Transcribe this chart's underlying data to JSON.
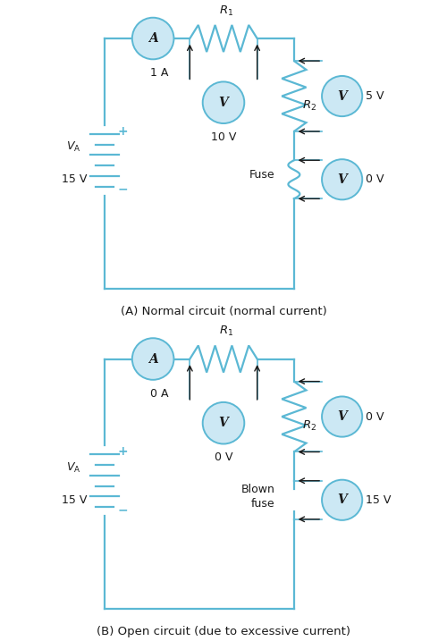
{
  "fig_width": 5.0,
  "fig_height": 7.17,
  "dpi": 100,
  "bg_color": "#ffffff",
  "circuit_color": "#5BB8D4",
  "black": "#1a1a1a",
  "meter_face": "#cce8f4",
  "label_A": "(A) Normal circuit (normal current)",
  "label_B": "(B) Open circuit (due to excessive current)",
  "ammeter_val_A": "1 A",
  "ammeter_val_B": "0 A",
  "v_r1_val_A": "10 V",
  "v_r1_val_B": "0 V",
  "v_r2_val_A": "5 V",
  "v_r2_val_B": "0 V",
  "v_fuse_val_A": "0 V",
  "v_fuse_val_B": "15 V",
  "battery_val": "15 V",
  "fuse_label_A": "Fuse",
  "fuse_label_B": "Blown\nfuse"
}
